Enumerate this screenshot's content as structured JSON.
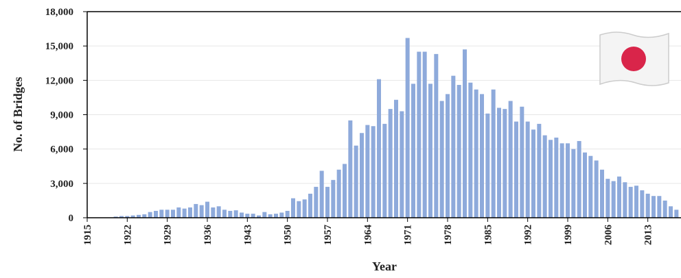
{
  "chart_data": {
    "type": "bar",
    "x_label": "Year",
    "y_label": "No. of Bridges",
    "x": [
      1915,
      1916,
      1917,
      1918,
      1919,
      1920,
      1921,
      1922,
      1923,
      1924,
      1925,
      1926,
      1927,
      1928,
      1929,
      1930,
      1931,
      1932,
      1933,
      1934,
      1935,
      1936,
      1937,
      1938,
      1939,
      1940,
      1941,
      1942,
      1943,
      1944,
      1945,
      1946,
      1947,
      1948,
      1949,
      1950,
      1951,
      1952,
      1953,
      1954,
      1955,
      1956,
      1957,
      1958,
      1959,
      1960,
      1961,
      1962,
      1963,
      1964,
      1965,
      1966,
      1967,
      1968,
      1969,
      1970,
      1971,
      1972,
      1973,
      1974,
      1975,
      1976,
      1977,
      1978,
      1979,
      1980,
      1981,
      1982,
      1983,
      1984,
      1985,
      1986,
      1987,
      1988,
      1989,
      1990,
      1991,
      1992,
      1993,
      1994,
      1995,
      1996,
      1997,
      1998,
      1999,
      2000,
      2001,
      2002,
      2003,
      2004,
      2005,
      2006,
      2007,
      2008,
      2009,
      2010,
      2011,
      2012,
      2013,
      2014,
      2015,
      2016,
      2017,
      2018
    ],
    "values": [
      0,
      0,
      0,
      0,
      0,
      100,
      150,
      150,
      200,
      250,
      300,
      500,
      600,
      700,
      700,
      700,
      900,
      800,
      900,
      1200,
      1100,
      1400,
      900,
      1000,
      700,
      600,
      650,
      450,
      350,
      350,
      200,
      500,
      300,
      350,
      450,
      600,
      1700,
      1450,
      1600,
      2100,
      2700,
      4100,
      2700,
      3300,
      4200,
      4700,
      8500,
      6300,
      7400,
      8100,
      8000,
      12100,
      8200,
      9500,
      10300,
      9300,
      15700,
      11700,
      14500,
      14500,
      11700,
      14300,
      10200,
      10800,
      12400,
      11600,
      14700,
      11800,
      11200,
      10800,
      9100,
      11200,
      9600,
      9500,
      10200,
      8400,
      9700,
      8400,
      7700,
      8200,
      7200,
      6800,
      7000,
      6500,
      6500,
      6000,
      6700,
      5700,
      5400,
      5000,
      4200,
      3400,
      3200,
      3600,
      3100,
      2700,
      2800,
      2400,
      2100,
      1900,
      1900,
      1500,
      1000,
      700
    ],
    "color": "#8eaadb",
    "xlim": [
      1915,
      2018.8
    ],
    "xticks": [
      1915,
      1922,
      1929,
      1936,
      1943,
      1950,
      1957,
      1964,
      1971,
      1978,
      1985,
      1992,
      1999,
      2006,
      2013
    ],
    "ylim": [
      0,
      18000
    ],
    "yticks": [
      0,
      {
        "value": 3000,
        "label": "3,000"
      },
      {
        "value": 6000,
        "label": "6,000"
      },
      {
        "value": 9000,
        "label": "9,000"
      },
      {
        "value": 12000,
        "label": "12,000"
      },
      {
        "value": 15000,
        "label": "15,000"
      },
      {
        "value": 18000,
        "label": "18,000"
      }
    ],
    "grid": true
  }
}
